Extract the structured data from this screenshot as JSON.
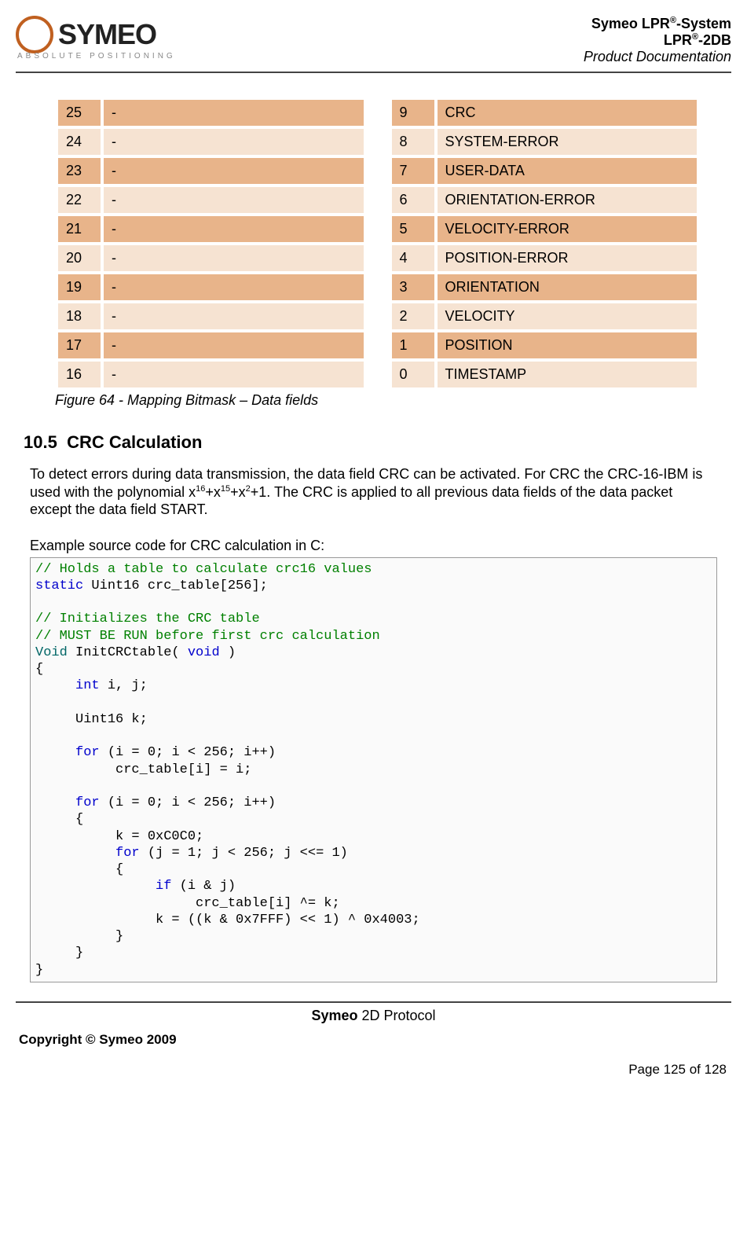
{
  "header": {
    "logo_word": "SYMEO",
    "logo_tag": "ABSOLUTE POSITIONING",
    "line1_a": "Symeo LPR",
    "line1_b": "-System",
    "line2_a": "LPR",
    "line2_b": "-2DB",
    "line3": "Product Documentation",
    "sup": "®"
  },
  "tables": {
    "left": [
      {
        "n": "25",
        "v": "-"
      },
      {
        "n": "24",
        "v": "-"
      },
      {
        "n": "23",
        "v": "-"
      },
      {
        "n": "22",
        "v": "-"
      },
      {
        "n": "21",
        "v": "-"
      },
      {
        "n": "20",
        "v": "-"
      },
      {
        "n": "19",
        "v": "-"
      },
      {
        "n": "18",
        "v": "-"
      },
      {
        "n": "17",
        "v": "-"
      },
      {
        "n": "16",
        "v": "-"
      }
    ],
    "right": [
      {
        "n": "9",
        "v": "CRC"
      },
      {
        "n": "8",
        "v": "SYSTEM-ERROR"
      },
      {
        "n": "7",
        "v": "USER-DATA"
      },
      {
        "n": "6",
        "v": "ORIENTATION-ERROR"
      },
      {
        "n": "5",
        "v": "VELOCITY-ERROR"
      },
      {
        "n": "4",
        "v": "POSITION-ERROR"
      },
      {
        "n": "3",
        "v": "ORIENTATION"
      },
      {
        "n": "2",
        "v": "VELOCITY"
      },
      {
        "n": "1",
        "v": "POSITION"
      },
      {
        "n": "0",
        "v": "TIMESTAMP"
      }
    ],
    "colors": {
      "dark": "#e8b48a",
      "light": "#f6e3d2"
    }
  },
  "caption": "Figure 64 - Mapping Bitmask – Data fields",
  "section": {
    "num": "10.5",
    "title": "CRC Calculation"
  },
  "para": {
    "pre": "To detect errors during data transmission, the data field CRC can be activated. For CRC the CRC-16-IBM is used with the polynomial x",
    "e1": "16",
    "p1": "+x",
    "e2": "15",
    "p2": "+x",
    "e3": "2",
    "post": "+1. The CRC is applied to all previous data fields of the data packet except the data field START."
  },
  "code_label": "Example source code for CRC calculation in C:",
  "code": {
    "c1": "// Holds a table to calculate crc16 values",
    "kw_static": "static",
    "l2": " Uint16 crc_table[256];",
    "c2": "// Initializes the CRC table",
    "c3": "// MUST BE RUN before first crc calculation",
    "kw_void_t": "Void",
    "l3": " InitCRCtable( ",
    "kw_void_p": "void",
    "l3b": " )",
    "brace_o": "{",
    "indent": "     ",
    "kw_int": "int",
    "l4": " i, j;",
    "l5": "     Uint16 k;",
    "kw_for": "for",
    "l6": " (i = 0; i < 256; i++)",
    "l7": "          crc_table[i] = i;",
    "l8": " (i = 0; i < 256; i++)",
    "l9": "          k = 0xC0C0;",
    "l10": " (j = 1; j < 256; j <<= 1)",
    "kw_if": "if",
    "l11": " (i & j)",
    "l12": "                    crc_table[i] ^= k;",
    "l13": "               k = ((k & 0x7FFF) << 1) ^ 0x4003;",
    "brace_c": "}",
    "inner_o": "     {",
    "inner2_o": "          {",
    "inner3_if": "               ",
    "inner2_c": "          }",
    "inner_c": "     }",
    "for_indent2": "          "
  },
  "footer": {
    "mid_bold": "Symeo",
    "mid_rest": " 2D Protocol",
    "copyright": "Copyright © Symeo 2009",
    "page": "Page 125 of 128"
  }
}
